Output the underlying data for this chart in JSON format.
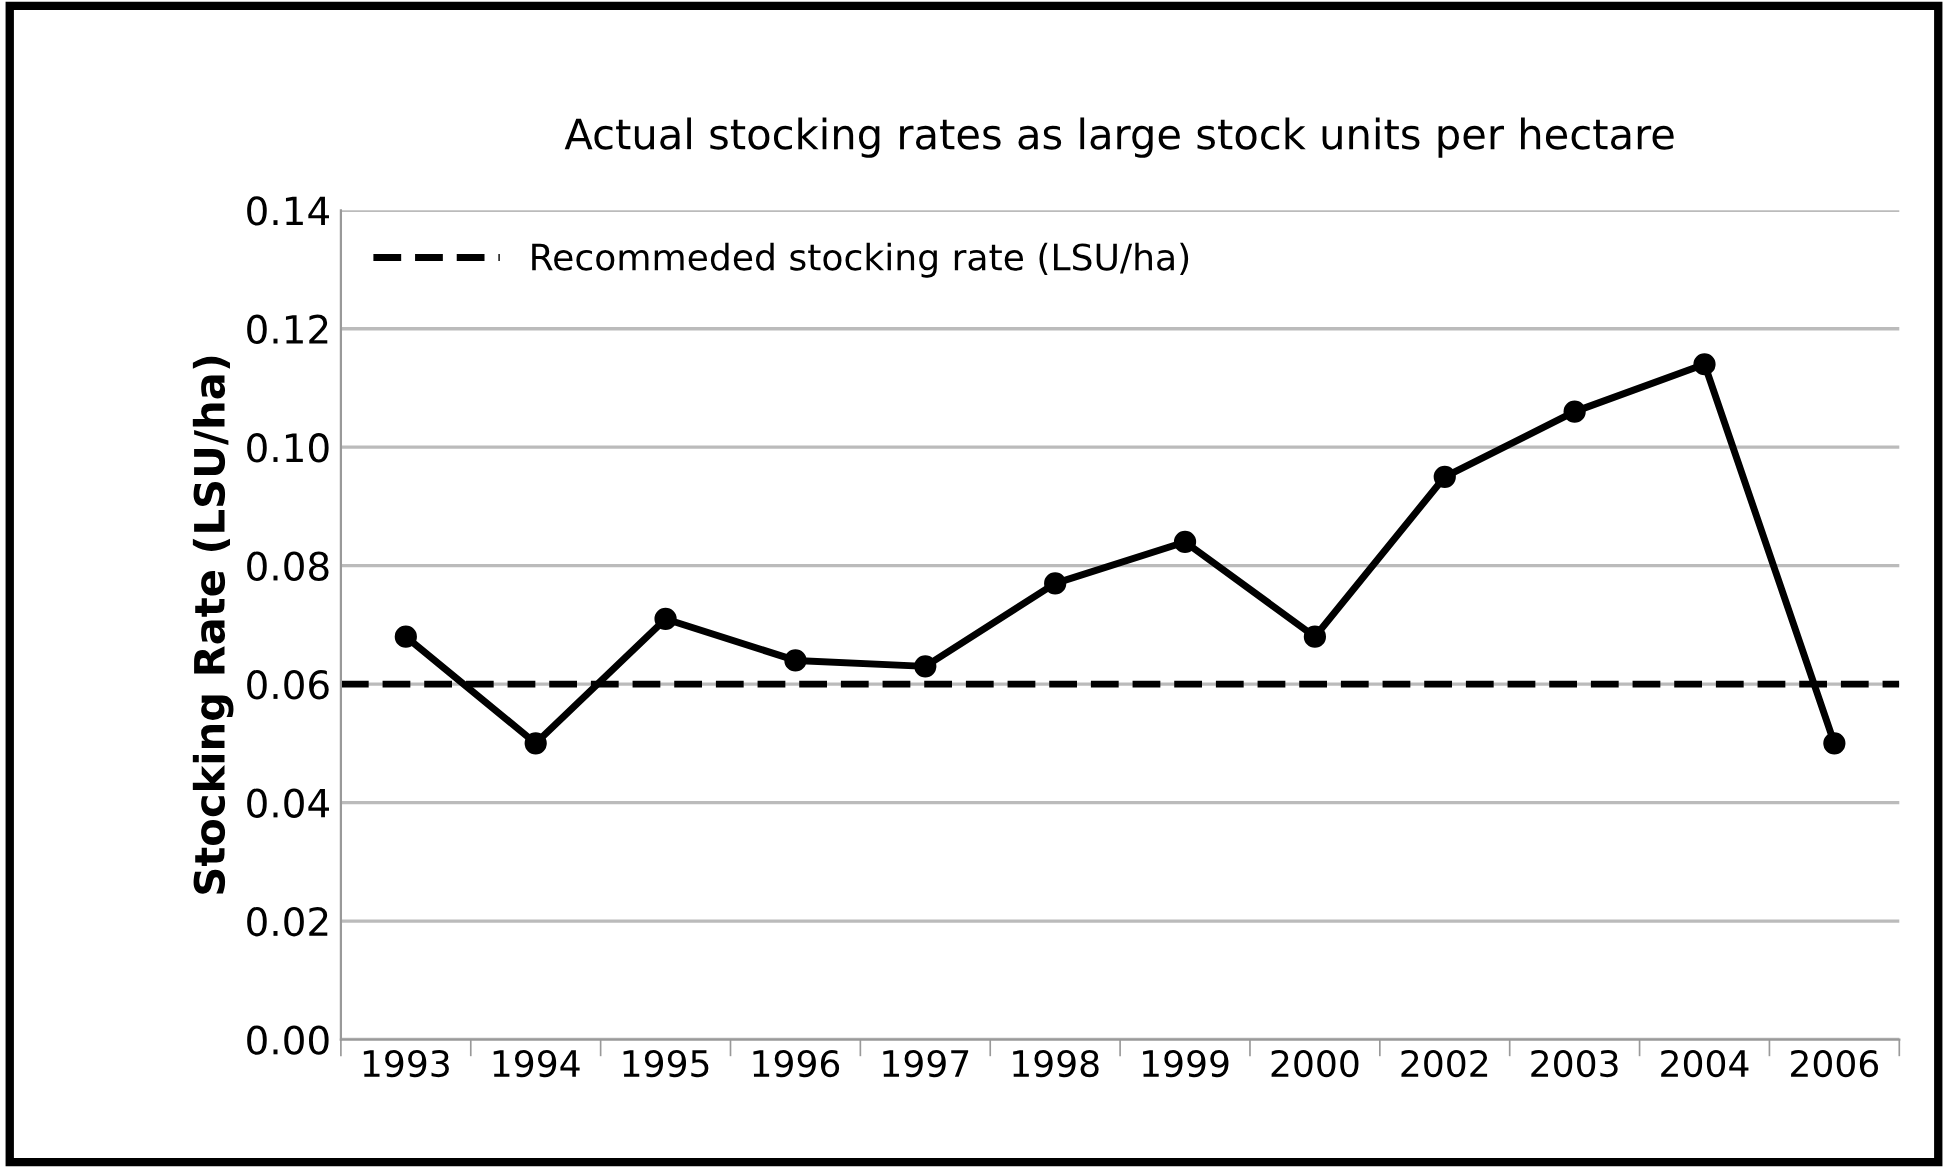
{
  "chart_data": {
    "type": "line",
    "title": "Actual stocking rates as large stock units per hectare",
    "ylabel": "Stocking Rate (LSU/ha)",
    "categories": [
      "1993",
      "1994",
      "1995",
      "1996",
      "1997",
      "1998",
      "1999",
      "2000",
      "2002",
      "2003",
      "2004",
      "2006"
    ],
    "series": [
      {
        "color": "#000000",
        "values": [
          0.068,
          0.05,
          0.071,
          0.064,
          0.063,
          0.077,
          0.084,
          0.068,
          0.095,
          0.106,
          0.114,
          0.05
        ]
      }
    ],
    "ylim": [
      0,
      0.14
    ],
    "yticks": [
      {
        "value": 0,
        "label": "0.00"
      },
      {
        "value": 0.02,
        "label": "0.02"
      },
      {
        "value": 0.04,
        "label": "0.04"
      },
      {
        "value": 0.06,
        "label": "0.06"
      },
      {
        "value": 0.08,
        "label": "0.08"
      },
      {
        "value": 0.1,
        "label": "0.10"
      },
      {
        "value": 0.12,
        "label": "0.12"
      },
      {
        "value": 0.14,
        "label": "0.14"
      }
    ],
    "ref_lines": [
      {
        "axis": "y",
        "value": 0.06,
        "label": "Recommeded stocking rate (LSU/ha)",
        "color": "#000000",
        "line_style": "dashed"
      }
    ],
    "grid": "y",
    "legend": "top left",
    "marker": "circle",
    "line_style": "solid"
  }
}
